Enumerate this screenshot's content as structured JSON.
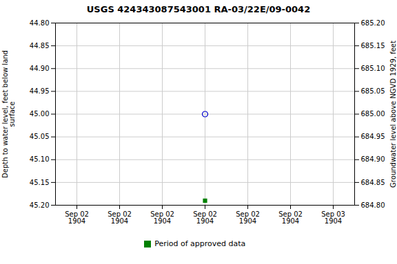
{
  "chart_data": {
    "type": "scatter",
    "title": "USGS 424343087543001 RA-03/22E/09-0042",
    "ylabel": "Depth to water level, feet below land\nsurface",
    "y2label": "Groundwater level above NGVD 1929, feet",
    "categories": [
      "Sep 02\n1904",
      "Sep 02\n1904",
      "Sep 02\n1904",
      "Sep 02\n1904",
      "Sep 02\n1904",
      "Sep 02\n1904",
      "Sep 03\n1904"
    ],
    "series": [
      {
        "color": "#0000cc",
        "marker": "open_circle",
        "values": [
          null,
          null,
          null,
          45.0,
          null,
          null,
          null
        ]
      },
      {
        "name": "Period of approved data",
        "color": "#008000",
        "marker": "square",
        "values": [
          null,
          null,
          null,
          45.19,
          null,
          null,
          null
        ]
      }
    ],
    "ylim": [
      45.2,
      44.8
    ],
    "yticks": [
      {
        "value": 44.8,
        "label": "44.80"
      },
      {
        "value": 44.85,
        "label": "44.85"
      },
      {
        "value": 44.9,
        "label": "44.90"
      },
      {
        "value": 44.95,
        "label": "44.95"
      },
      {
        "value": 45.0,
        "label": "45.00"
      },
      {
        "value": 45.05,
        "label": "45.05"
      },
      {
        "value": 45.1,
        "label": "45.10"
      },
      {
        "value": 45.15,
        "label": "45.15"
      },
      {
        "value": 45.2,
        "label": "45.20"
      }
    ],
    "y2lim": [
      684.8,
      685.2
    ],
    "y2ticks": [
      {
        "value": 685.2,
        "label": "685.20"
      },
      {
        "value": 685.15,
        "label": "685.15"
      },
      {
        "value": 685.1,
        "label": "685.10"
      },
      {
        "value": 685.05,
        "label": "685.05"
      },
      {
        "value": 685.0,
        "label": "685.00"
      },
      {
        "value": 684.95,
        "label": "684.95"
      },
      {
        "value": 684.9,
        "label": "684.90"
      },
      {
        "value": 684.85,
        "label": "684.85"
      },
      {
        "value": 684.8,
        "label": "684.80"
      }
    ],
    "grid": true,
    "legend": "bottom"
  }
}
